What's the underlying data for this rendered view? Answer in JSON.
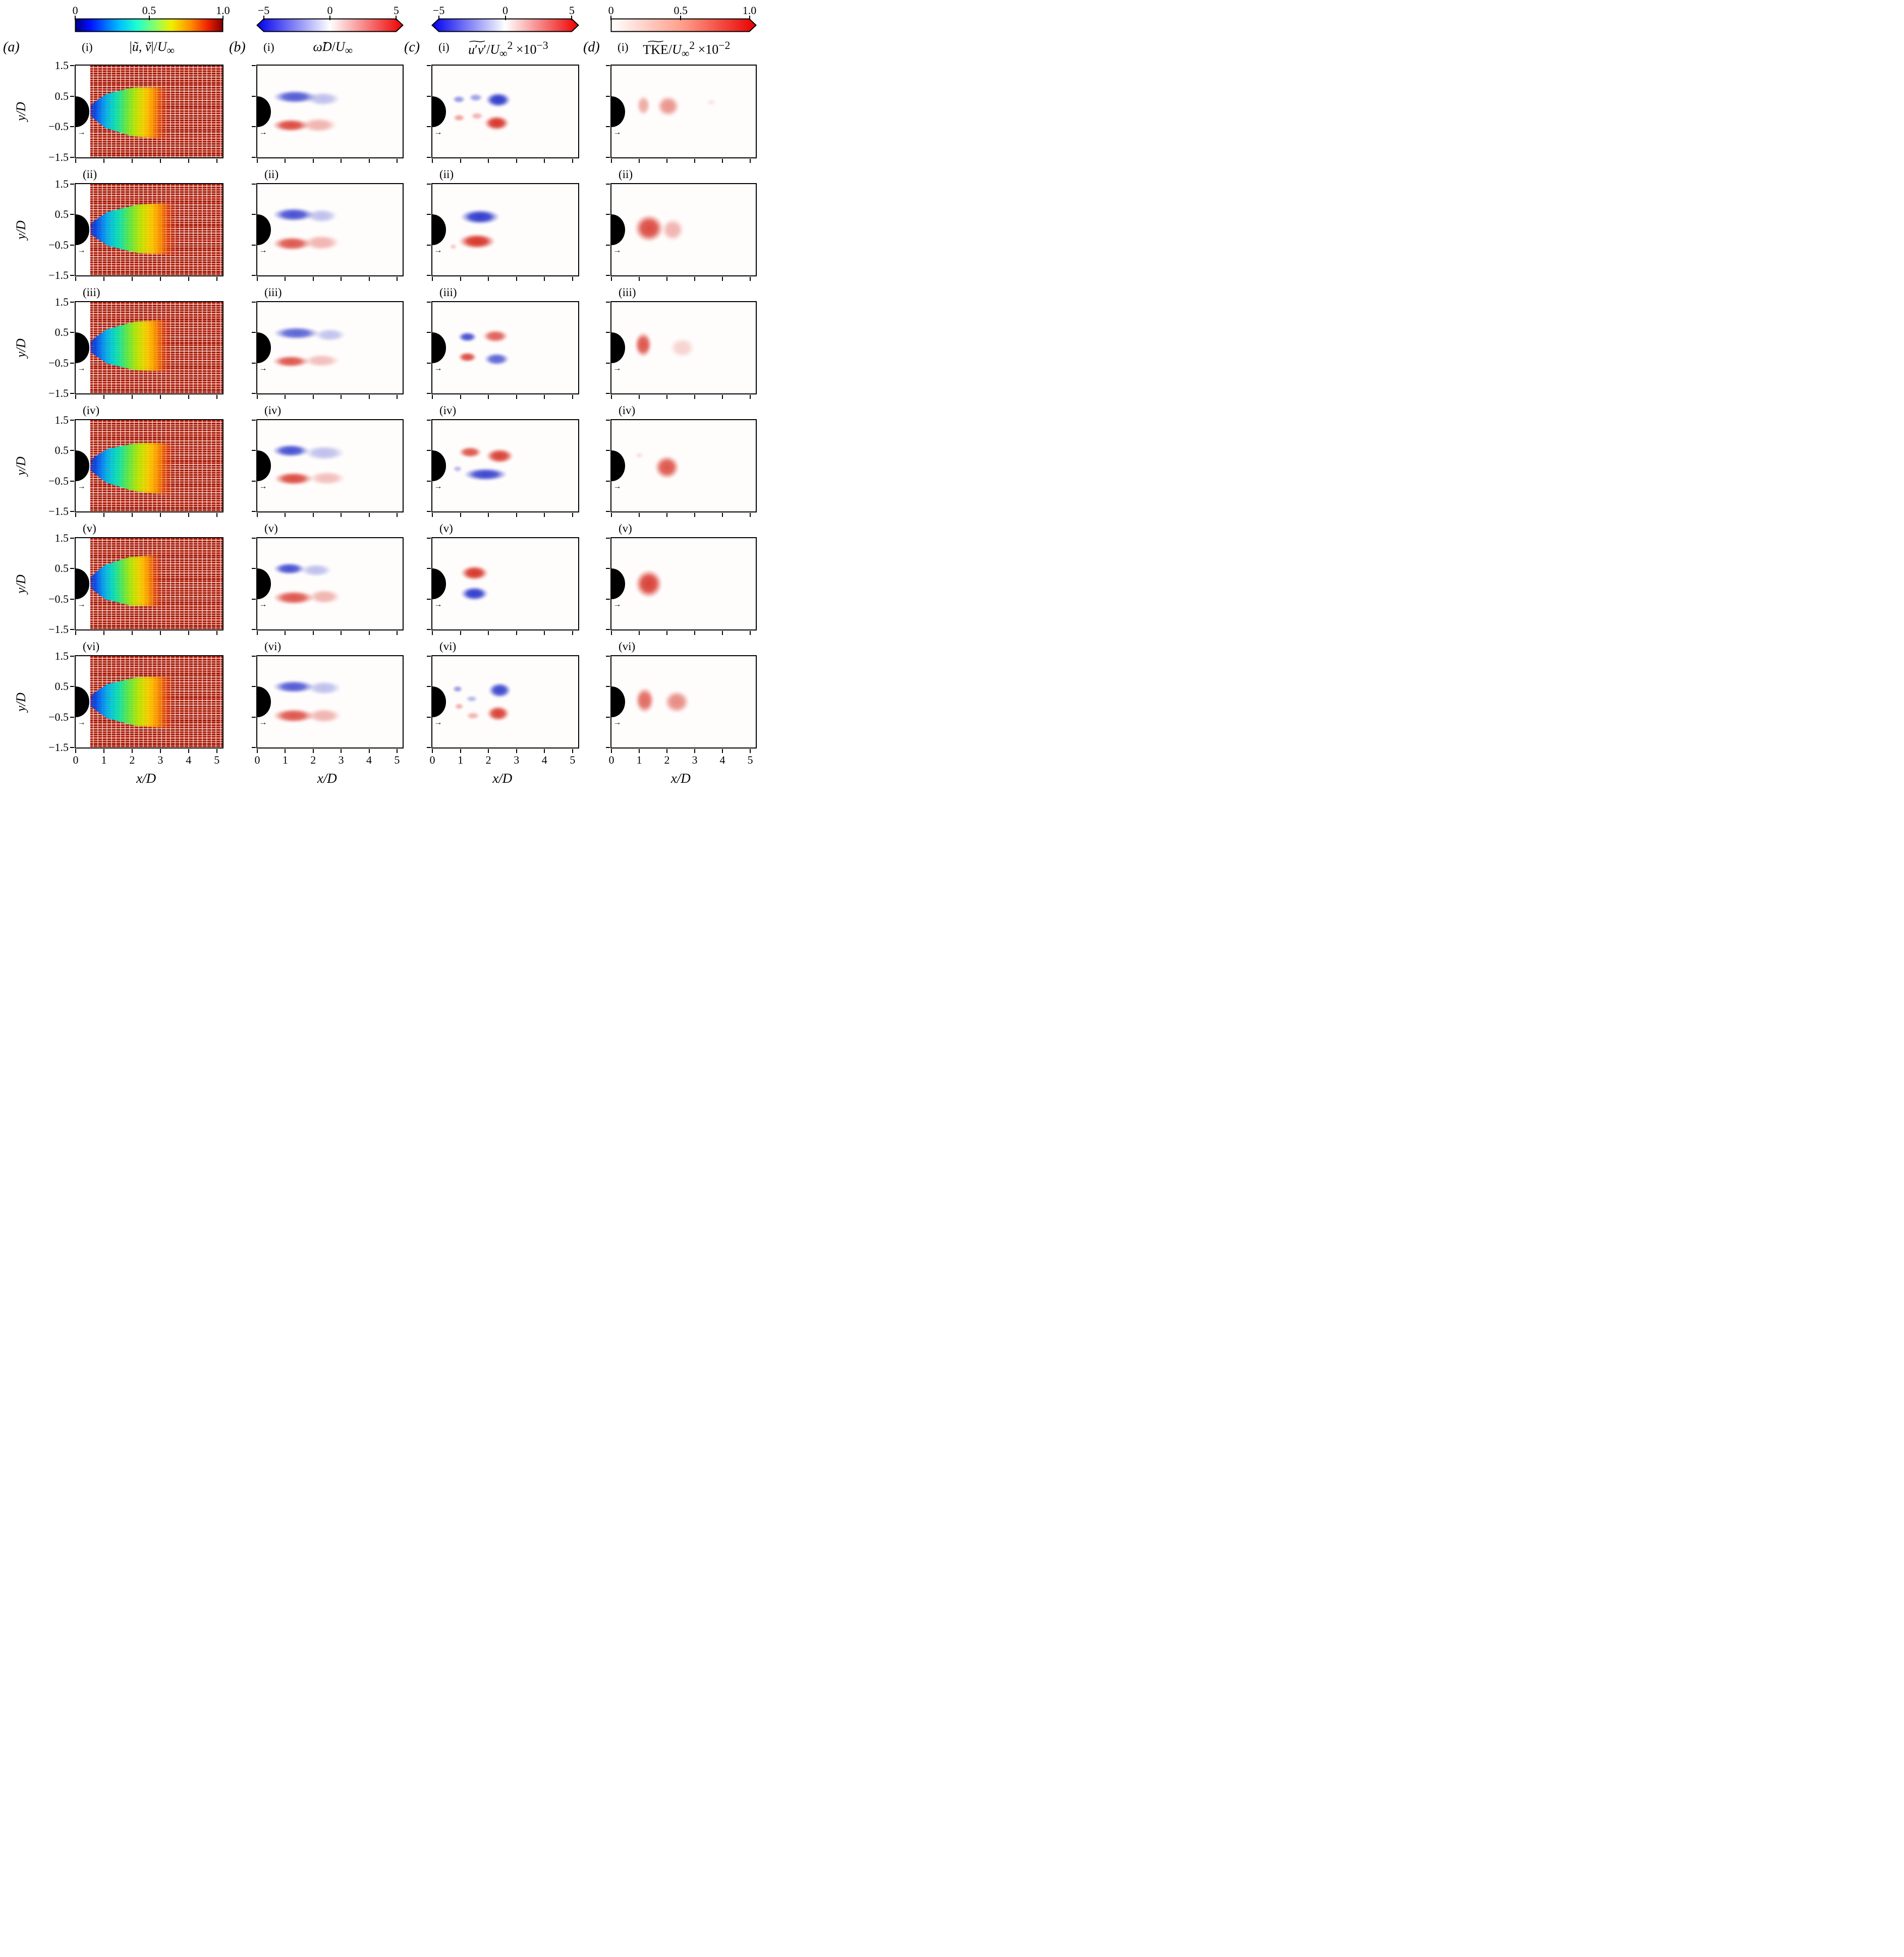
{
  "figure": {
    "letters": [
      "(a)",
      "(b)",
      "(c)",
      "(d)"
    ],
    "row_labels": [
      "(i)",
      "(ii)",
      "(iii)",
      "(iv)",
      "(v)",
      "(vi)"
    ],
    "titles_html": [
      "|<i>ũ</i>, <i>ṽ</i>|/<i>U</i><sub>∞</sub>",
      "<i>ω̃</i><i>D</i>/<i>U</i><sub>∞</sub>",
      "<span class='wt'><i>u</i>′<i>v</i>′</span>/<i>U</i><sub>∞</sub><sup>2</sup> ×10<sup>−3</sup>",
      "<span class='wt'>TKE</span>/<i>U</i><sub>∞</sub><sup>2</sup> ×10<sup>−2</sup>"
    ],
    "colorbars": [
      {
        "kind": "jet",
        "ticks": [
          "0",
          "0.5",
          "1.0"
        ]
      },
      {
        "kind": "bwr",
        "ticks": [
          "−5",
          "0",
          "5"
        ]
      },
      {
        "kind": "bwr",
        "ticks": [
          "−5",
          "0",
          "5"
        ]
      },
      {
        "kind": "red",
        "ticks": [
          "0",
          "0.5",
          "1.0"
        ]
      }
    ],
    "x_ticks": [
      "0",
      "1",
      "2",
      "3",
      "4",
      "5"
    ],
    "y_ticks": [
      "1.5",
      "0.5",
      "−0.5",
      "−1.5"
    ],
    "xlabel_html": "<i>x</i>/<i>D</i>",
    "ylabel_html": "<i>y</i>/<i>D</i>",
    "flow_arrow_glyph": "→"
  },
  "chart_data": {
    "type": "heatmap",
    "x_range": [
      0,
      5.2
    ],
    "y_range": [
      -1.5,
      1.5
    ],
    "xlabel": "x/D",
    "ylabel": "y/D",
    "rows": [
      "(i)",
      "(ii)",
      "(iii)",
      "(iv)",
      "(v)",
      "(vi)"
    ],
    "columns": [
      {
        "panel": "(a)",
        "quantity": "|u~, v~|/U_inf",
        "plot": "quiver vector field colored by velocity magnitude",
        "colormap": "jet",
        "colorbar_range": [
          0,
          1.0
        ],
        "colorbar_ticks": [
          0,
          0.5,
          1.0
        ]
      },
      {
        "panel": "(b)",
        "quantity": "omega~ D/U_inf",
        "plot": "phase-averaged vorticity contours",
        "colormap": "blue-white-red",
        "colorbar_range": [
          -5,
          5
        ],
        "colorbar_ticks": [
          -5,
          0,
          5
        ]
      },
      {
        "panel": "(c)",
        "quantity": "u'v'/U_inf^2 x 10^-3",
        "plot": "Reynolds shear stress contours",
        "colormap": "blue-white-red",
        "colorbar_range": [
          -5,
          5
        ],
        "colorbar_ticks": [
          -5,
          0,
          5
        ]
      },
      {
        "panel": "(d)",
        "quantity": "TKE/U_inf^2 x 10^-2",
        "plot": "turbulent kinetic energy contours",
        "colormap": "white-red",
        "colorbar_range": [
          0,
          1.0
        ],
        "colorbar_ticks": [
          0,
          0.5,
          1.0
        ]
      }
    ],
    "cylinder": {
      "shape": "half-disc",
      "center_y": 0,
      "radius_D": 0.5,
      "color": "#000000"
    },
    "colors": {
      "positive": "#d42a1e",
      "negative": "#2430c8",
      "jet_wake": [
        "#0018c0",
        "#00b8f0",
        "#58f048",
        "#ffd400",
        "#ff3000"
      ]
    },
    "panels": {
      "a": [
        {
          "wake_end": 3.3,
          "tilt": 2
        },
        {
          "wake_end": 3.6,
          "tilt": 0
        },
        {
          "wake_end": 3.4,
          "tilt": -1
        },
        {
          "wake_end": 3.5,
          "tilt": 3
        },
        {
          "wake_end": 3.1,
          "tilt": -2
        },
        {
          "wake_end": 3.5,
          "tilt": 1
        }
      ],
      "b": [
        [
          {
            "x": 1.35,
            "y": 0.48,
            "rx": 0.95,
            "ry": 0.26,
            "s": -1,
            "a": 0.8
          },
          {
            "x": 2.35,
            "y": 0.42,
            "rx": 0.75,
            "ry": 0.28,
            "s": -1,
            "a": 0.3
          },
          {
            "x": 1.2,
            "y": -0.45,
            "rx": 0.8,
            "ry": 0.26,
            "s": 1,
            "a": 0.85
          },
          {
            "x": 2.2,
            "y": -0.45,
            "rx": 0.8,
            "ry": 0.3,
            "s": 1,
            "a": 0.35
          }
        ],
        [
          {
            "x": 1.3,
            "y": 0.5,
            "rx": 0.9,
            "ry": 0.27,
            "s": -1,
            "a": 0.85
          },
          {
            "x": 2.3,
            "y": 0.45,
            "rx": 0.7,
            "ry": 0.28,
            "s": -1,
            "a": 0.3
          },
          {
            "x": 1.25,
            "y": -0.45,
            "rx": 0.85,
            "ry": 0.28,
            "s": 1,
            "a": 0.8
          },
          {
            "x": 2.3,
            "y": -0.42,
            "rx": 0.8,
            "ry": 0.32,
            "s": 1,
            "a": 0.35
          }
        ],
        [
          {
            "x": 1.4,
            "y": 0.48,
            "rx": 1.0,
            "ry": 0.26,
            "s": -1,
            "a": 0.75
          },
          {
            "x": 2.6,
            "y": 0.42,
            "rx": 0.7,
            "ry": 0.26,
            "s": -1,
            "a": 0.28
          },
          {
            "x": 1.2,
            "y": -0.45,
            "rx": 0.8,
            "ry": 0.24,
            "s": 1,
            "a": 0.8
          },
          {
            "x": 2.3,
            "y": -0.42,
            "rx": 0.8,
            "ry": 0.26,
            "s": 1,
            "a": 0.3
          }
        ],
        [
          {
            "x": 1.2,
            "y": 0.5,
            "rx": 0.8,
            "ry": 0.26,
            "s": -1,
            "a": 0.85
          },
          {
            "x": 2.4,
            "y": 0.42,
            "rx": 0.9,
            "ry": 0.3,
            "s": -1,
            "a": 0.3
          },
          {
            "x": 1.3,
            "y": -0.42,
            "rx": 0.85,
            "ry": 0.26,
            "s": 1,
            "a": 0.85
          },
          {
            "x": 2.5,
            "y": -0.4,
            "rx": 0.8,
            "ry": 0.28,
            "s": 1,
            "a": 0.3
          }
        ],
        [
          {
            "x": 1.15,
            "y": 0.5,
            "rx": 0.7,
            "ry": 0.24,
            "s": -1,
            "a": 0.85
          },
          {
            "x": 2.1,
            "y": 0.45,
            "rx": 0.7,
            "ry": 0.26,
            "s": -1,
            "a": 0.3
          },
          {
            "x": 1.3,
            "y": -0.45,
            "rx": 0.9,
            "ry": 0.28,
            "s": 1,
            "a": 0.8
          },
          {
            "x": 2.4,
            "y": -0.42,
            "rx": 0.7,
            "ry": 0.3,
            "s": 1,
            "a": 0.35
          }
        ],
        [
          {
            "x": 1.3,
            "y": 0.5,
            "rx": 0.9,
            "ry": 0.26,
            "s": -1,
            "a": 0.8
          },
          {
            "x": 2.4,
            "y": 0.45,
            "rx": 0.75,
            "ry": 0.28,
            "s": -1,
            "a": 0.3
          },
          {
            "x": 1.3,
            "y": -0.45,
            "rx": 0.9,
            "ry": 0.28,
            "s": 1,
            "a": 0.8
          },
          {
            "x": 2.4,
            "y": -0.45,
            "rx": 0.75,
            "ry": 0.3,
            "s": 1,
            "a": 0.35
          }
        ]
      ],
      "c": [
        [
          {
            "x": 0.95,
            "y": 0.4,
            "rx": 0.28,
            "ry": 0.15,
            "s": -1,
            "a": 0.5
          },
          {
            "x": 1.55,
            "y": 0.45,
            "rx": 0.3,
            "ry": 0.16,
            "s": -1,
            "a": 0.45
          },
          {
            "x": 2.35,
            "y": 0.38,
            "rx": 0.55,
            "ry": 0.3,
            "s": -1,
            "a": 0.95
          },
          {
            "x": 0.95,
            "y": -0.2,
            "rx": 0.25,
            "ry": 0.14,
            "s": 1,
            "a": 0.45
          },
          {
            "x": 1.6,
            "y": -0.15,
            "rx": 0.28,
            "ry": 0.15,
            "s": 1,
            "a": 0.35
          },
          {
            "x": 2.3,
            "y": -0.38,
            "rx": 0.55,
            "ry": 0.3,
            "s": 1,
            "a": 0.95
          }
        ],
        [
          {
            "x": 1.7,
            "y": 0.42,
            "rx": 0.85,
            "ry": 0.3,
            "s": -1,
            "a": 0.95
          },
          {
            "x": 1.6,
            "y": -0.38,
            "rx": 0.8,
            "ry": 0.3,
            "s": 1,
            "a": 0.95
          },
          {
            "x": 0.75,
            "y": -0.55,
            "rx": 0.15,
            "ry": 0.1,
            "s": 1,
            "a": 0.3
          }
        ],
        [
          {
            "x": 1.25,
            "y": 0.35,
            "rx": 0.4,
            "ry": 0.2,
            "s": -1,
            "a": 0.85
          },
          {
            "x": 2.25,
            "y": 0.38,
            "rx": 0.55,
            "ry": 0.25,
            "s": 1,
            "a": 0.75
          },
          {
            "x": 1.25,
            "y": -0.3,
            "rx": 0.4,
            "ry": 0.2,
            "s": 1,
            "a": 0.85
          },
          {
            "x": 2.3,
            "y": -0.38,
            "rx": 0.55,
            "ry": 0.25,
            "s": -1,
            "a": 0.75
          }
        ],
        [
          {
            "x": 1.35,
            "y": 0.45,
            "rx": 0.5,
            "ry": 0.22,
            "s": 1,
            "a": 0.8
          },
          {
            "x": 2.4,
            "y": 0.32,
            "rx": 0.6,
            "ry": 0.3,
            "s": 1,
            "a": 0.9
          },
          {
            "x": 1.9,
            "y": -0.28,
            "rx": 0.95,
            "ry": 0.26,
            "s": -1,
            "a": 0.9
          },
          {
            "x": 0.9,
            "y": -0.1,
            "rx": 0.2,
            "ry": 0.12,
            "s": -1,
            "a": 0.35
          }
        ],
        [
          {
            "x": 1.5,
            "y": 0.35,
            "rx": 0.6,
            "ry": 0.3,
            "s": 1,
            "a": 0.95
          },
          {
            "x": 1.5,
            "y": -0.32,
            "rx": 0.6,
            "ry": 0.28,
            "s": -1,
            "a": 0.95
          }
        ],
        [
          {
            "x": 0.9,
            "y": 0.42,
            "rx": 0.22,
            "ry": 0.13,
            "s": -1,
            "a": 0.5
          },
          {
            "x": 1.4,
            "y": 0.1,
            "rx": 0.25,
            "ry": 0.13,
            "s": -1,
            "a": 0.35
          },
          {
            "x": 0.95,
            "y": -0.15,
            "rx": 0.2,
            "ry": 0.12,
            "s": 1,
            "a": 0.4
          },
          {
            "x": 1.45,
            "y": -0.45,
            "rx": 0.3,
            "ry": 0.15,
            "s": 1,
            "a": 0.35
          },
          {
            "x": 2.4,
            "y": 0.38,
            "rx": 0.5,
            "ry": 0.3,
            "s": -1,
            "a": 0.9
          },
          {
            "x": 2.35,
            "y": -0.38,
            "rx": 0.5,
            "ry": 0.3,
            "s": 1,
            "a": 0.9
          }
        ]
      ],
      "d": [
        [
          {
            "x": 1.15,
            "y": 0.2,
            "rx": 0.3,
            "ry": 0.4,
            "s": 1,
            "a": 0.4
          },
          {
            "x": 2.05,
            "y": 0.18,
            "rx": 0.5,
            "ry": 0.42,
            "s": 1,
            "a": 0.5
          },
          {
            "x": 3.6,
            "y": 0.3,
            "rx": 0.2,
            "ry": 0.12,
            "s": 1,
            "a": 0.12
          }
        ],
        [
          {
            "x": 1.35,
            "y": 0.05,
            "rx": 0.65,
            "ry": 0.55,
            "s": 1,
            "a": 0.85
          },
          {
            "x": 2.2,
            "y": 0.0,
            "rx": 0.5,
            "ry": 0.45,
            "s": 1,
            "a": 0.35
          }
        ],
        [
          {
            "x": 1.15,
            "y": 0.1,
            "rx": 0.38,
            "ry": 0.5,
            "s": 1,
            "a": 0.8
          },
          {
            "x": 2.55,
            "y": 0.0,
            "rx": 0.55,
            "ry": 0.4,
            "s": 1,
            "a": 0.2
          }
        ],
        [
          {
            "x": 2.0,
            "y": -0.05,
            "rx": 0.55,
            "ry": 0.48,
            "s": 1,
            "a": 0.8
          },
          {
            "x": 1.0,
            "y": 0.35,
            "rx": 0.18,
            "ry": 0.12,
            "s": 1,
            "a": 0.15
          }
        ],
        [
          {
            "x": 1.35,
            "y": 0.0,
            "rx": 0.6,
            "ry": 0.58,
            "s": 1,
            "a": 0.9
          }
        ],
        [
          {
            "x": 1.2,
            "y": 0.05,
            "rx": 0.42,
            "ry": 0.52,
            "s": 1,
            "a": 0.7
          },
          {
            "x": 2.35,
            "y": 0.0,
            "rx": 0.55,
            "ry": 0.45,
            "s": 1,
            "a": 0.55
          }
        ]
      ]
    }
  }
}
